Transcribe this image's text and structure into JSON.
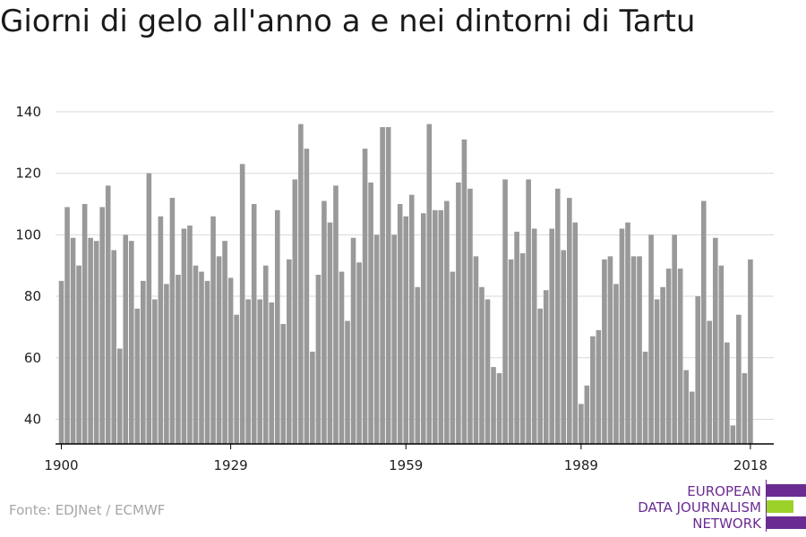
{
  "title": "Giorni di gelo all'anno a e nei dintorni di Tartu",
  "source": "Fonte: EDJNet / ECMWF",
  "logo": {
    "lines": [
      "EUROPEAN",
      "DATA JOURNALISM",
      "NETWORK"
    ],
    "colors": {
      "text": "#6b2c91",
      "purple": "#6b2c91",
      "green": "#9bd22a"
    }
  },
  "colors": {
    "bar": "#999999",
    "grid": "#d9d9d9",
    "axis": "#000000"
  },
  "chart_data": {
    "type": "bar",
    "title": "Giorni di gelo all'anno a e nei dintorni di Tartu",
    "xlabel": "",
    "ylabel": "",
    "ylim": [
      32,
      142
    ],
    "xlim": [
      1899,
      2022
    ],
    "grid": true,
    "legend": "none",
    "yticks": [
      40,
      60,
      80,
      100,
      120,
      140
    ],
    "xticks": [
      1900,
      1929,
      1959,
      1989,
      2018
    ],
    "x": [
      1900,
      1901,
      1902,
      1903,
      1904,
      1905,
      1906,
      1907,
      1908,
      1909,
      1910,
      1911,
      1912,
      1913,
      1914,
      1915,
      1916,
      1917,
      1918,
      1919,
      1920,
      1921,
      1922,
      1923,
      1924,
      1925,
      1926,
      1927,
      1928,
      1929,
      1930,
      1931,
      1932,
      1933,
      1934,
      1935,
      1936,
      1937,
      1938,
      1939,
      1940,
      1941,
      1942,
      1943,
      1944,
      1945,
      1946,
      1947,
      1948,
      1949,
      1950,
      1951,
      1952,
      1953,
      1954,
      1955,
      1956,
      1957,
      1958,
      1959,
      1960,
      1961,
      1962,
      1963,
      1964,
      1965,
      1966,
      1967,
      1968,
      1969,
      1970,
      1971,
      1972,
      1973,
      1974,
      1975,
      1976,
      1977,
      1978,
      1979,
      1980,
      1981,
      1982,
      1983,
      1984,
      1985,
      1986,
      1987,
      1988,
      1989,
      1990,
      1991,
      1992,
      1993,
      1994,
      1995,
      1996,
      1997,
      1998,
      1999,
      2000,
      2001,
      2002,
      2003,
      2004,
      2005,
      2006,
      2007,
      2008,
      2009,
      2010,
      2011,
      2012,
      2013,
      2014,
      2015,
      2016,
      2017,
      2018
    ],
    "values": [
      85,
      109,
      99,
      90,
      110,
      99,
      98,
      109,
      116,
      95,
      63,
      100,
      98,
      76,
      85,
      120,
      79,
      106,
      84,
      112,
      87,
      102,
      103,
      90,
      88,
      85,
      106,
      93,
      98,
      86,
      74,
      123,
      79,
      110,
      79,
      90,
      78,
      108,
      71,
      92,
      118,
      136,
      128,
      62,
      87,
      111,
      104,
      116,
      88,
      72,
      99,
      91,
      128,
      117,
      100,
      135,
      135,
      100,
      110,
      106,
      113,
      83,
      107,
      136,
      108,
      108,
      111,
      88,
      117,
      131,
      115,
      93,
      83,
      79,
      57,
      55,
      118,
      92,
      101,
      94,
      118,
      102,
      76,
      82,
      102,
      115,
      95,
      112,
      104,
      45,
      51,
      67,
      69,
      92,
      93,
      84,
      102,
      104,
      93,
      93,
      62,
      100,
      79,
      83,
      89,
      100,
      89,
      56,
      49,
      80,
      111,
      72,
      99,
      90,
      65,
      38,
      74,
      55,
      92
    ]
  }
}
